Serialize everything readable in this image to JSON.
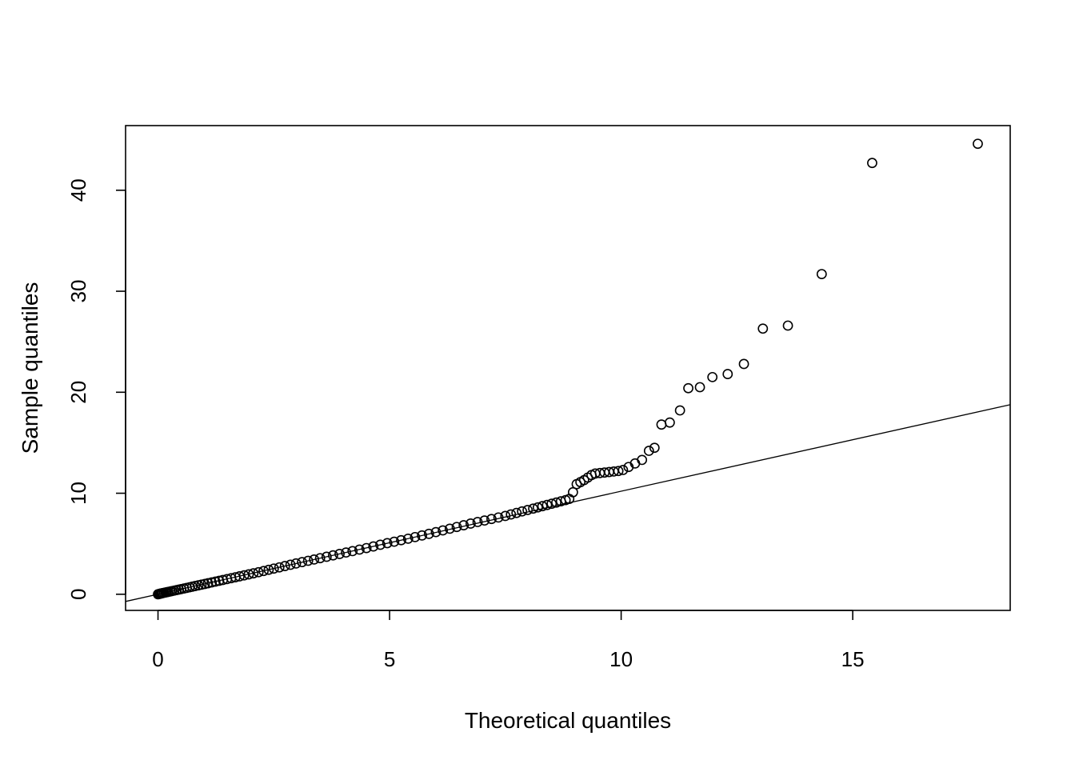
{
  "chart_data": {
    "type": "scatter",
    "title": "",
    "xlabel": "Theoretical quantiles",
    "ylabel": "Sample quantiles",
    "xlim": [
      -0.7,
      18.4
    ],
    "ylim": [
      -1.6,
      46.4
    ],
    "x_ticks": [
      0,
      5,
      10,
      15
    ],
    "x_tick_labels": [
      "0",
      "5",
      "10",
      "15"
    ],
    "y_ticks": [
      0,
      10,
      20,
      30,
      40
    ],
    "y_tick_labels": [
      "0",
      "10",
      "20",
      "30",
      "40"
    ],
    "grid": false,
    "legend": "none",
    "colors": {
      "points": "#000000",
      "line": "#000000",
      "background": "#ffffff"
    },
    "reference_line": {
      "slope": 1.02,
      "intercept": 0.0
    },
    "points": {
      "x": [
        0.0,
        0.02,
        0.04,
        0.06,
        0.08,
        0.1,
        0.13,
        0.16,
        0.19,
        0.22,
        0.26,
        0.3,
        0.35,
        0.4,
        0.45,
        0.5,
        0.56,
        0.62,
        0.68,
        0.74,
        0.8,
        0.87,
        0.94,
        1.01,
        1.08,
        1.16,
        1.24,
        1.32,
        1.4,
        1.49,
        1.58,
        1.67,
        1.76,
        1.86,
        1.96,
        2.06,
        2.17,
        2.28,
        2.39,
        2.5,
        2.62,
        2.74,
        2.86,
        2.98,
        3.11,
        3.24,
        3.37,
        3.5,
        3.64,
        3.78,
        3.92,
        4.06,
        4.2,
        4.35,
        4.5,
        4.65,
        4.8,
        4.95,
        5.1,
        5.25,
        5.4,
        5.55,
        5.7,
        5.85,
        6.0,
        6.15,
        6.3,
        6.45,
        6.6,
        6.75,
        6.9,
        7.05,
        7.2,
        7.35,
        7.5,
        7.62,
        7.74,
        7.86,
        7.98,
        8.1,
        8.2,
        8.3,
        8.4,
        8.5,
        8.6,
        8.7,
        8.8,
        8.88,
        8.96,
        9.04,
        9.12,
        9.2,
        9.28,
        9.36,
        9.44,
        9.54,
        9.64,
        9.74,
        9.84,
        9.94,
        10.04,
        10.16,
        10.3,
        10.45,
        10.6,
        10.72,
        10.87,
        11.05,
        11.27,
        11.45,
        11.7,
        11.97,
        12.3,
        12.65,
        13.06,
        13.6,
        14.33,
        15.42,
        17.7
      ],
      "y": [
        0.0,
        0.02,
        0.05,
        0.07,
        0.09,
        0.11,
        0.14,
        0.17,
        0.2,
        0.23,
        0.27,
        0.31,
        0.36,
        0.41,
        0.46,
        0.51,
        0.57,
        0.63,
        0.69,
        0.75,
        0.81,
        0.88,
        0.95,
        1.02,
        1.09,
        1.17,
        1.25,
        1.33,
        1.41,
        1.5,
        1.59,
        1.68,
        1.77,
        1.87,
        1.97,
        2.07,
        2.18,
        2.3,
        2.42,
        2.54,
        2.66,
        2.79,
        2.92,
        3.05,
        3.18,
        3.31,
        3.44,
        3.57,
        3.71,
        3.85,
        3.99,
        4.13,
        4.27,
        4.42,
        4.57,
        4.73,
        4.9,
        5.06,
        5.2,
        5.35,
        5.5,
        5.66,
        5.82,
        5.98,
        6.15,
        6.32,
        6.49,
        6.66,
        6.83,
        7.0,
        7.15,
        7.3,
        7.45,
        7.6,
        7.75,
        7.9,
        8.05,
        8.2,
        8.34,
        8.48,
        8.6,
        8.72,
        8.84,
        8.96,
        9.08,
        9.2,
        9.32,
        9.44,
        10.1,
        10.9,
        11.1,
        11.3,
        11.55,
        11.8,
        11.95,
        12.0,
        12.05,
        12.1,
        12.15,
        12.2,
        12.3,
        12.6,
        12.95,
        13.3,
        14.2,
        14.5,
        16.8,
        17.0,
        18.2,
        20.4,
        20.5,
        21.5,
        21.8,
        22.8,
        26.3,
        26.6,
        31.7,
        42.7,
        44.6
      ]
    },
    "axis_labels": {
      "x_ticks": [
        "0",
        "5",
        "10",
        "15"
      ],
      "y_ticks": [
        "0",
        "10",
        "20",
        "30",
        "40"
      ]
    }
  }
}
